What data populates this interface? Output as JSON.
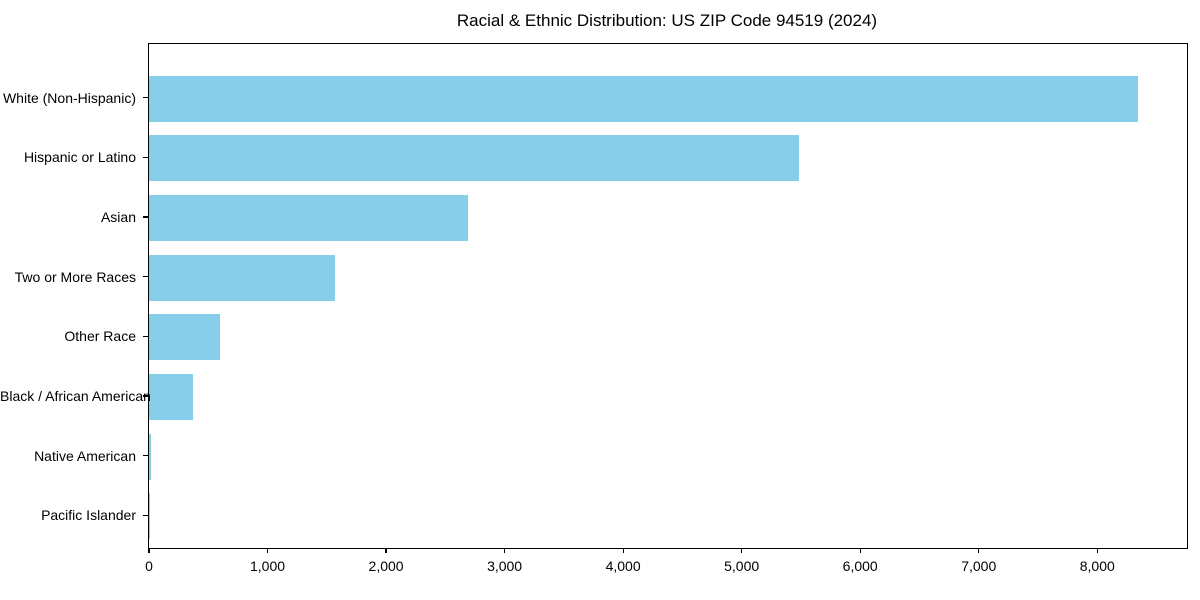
{
  "window": {
    "background": "#ffffff"
  },
  "chart_data": {
    "type": "bar",
    "orientation": "horizontal",
    "title": "Racial & Ethnic Distribution: US ZIP Code 94519 (2024)",
    "xlabel": "",
    "ylabel": "",
    "categories": [
      "White (Non-Hispanic)",
      "Hispanic or Latino",
      "Asian",
      "Two or More Races",
      "Other Race",
      "Black / African American",
      "Native American",
      "Pacific Islander"
    ],
    "values": [
      8340,
      5480,
      2695,
      1565,
      600,
      370,
      18,
      10
    ],
    "xlim": [
      0,
      8757
    ],
    "x_ticks": [
      0,
      1000,
      2000,
      3000,
      4000,
      5000,
      6000,
      7000,
      8000
    ],
    "x_tick_labels": [
      "0",
      "1,000",
      "2,000",
      "3,000",
      "4,000",
      "5,000",
      "6,000",
      "7,000",
      "8,000"
    ],
    "grid": false,
    "legend": null,
    "bar_color": "#87CEEB",
    "axis_color": "#000000",
    "text_color": "#000000"
  }
}
